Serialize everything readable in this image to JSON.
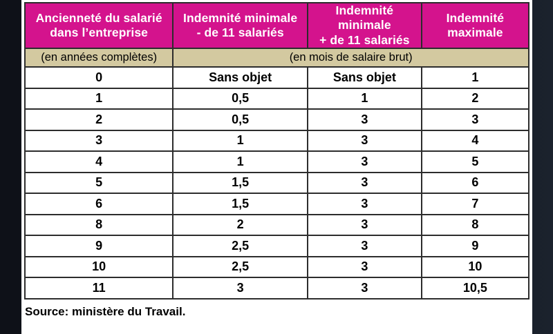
{
  "colors": {
    "header_bg": "#d4138d",
    "units_bg": "#d3c9a0",
    "border": "#2c2c2c",
    "page_bg": "#12151e",
    "panel_bg": "#ffffff"
  },
  "chart_data": {
    "type": "table",
    "header": [
      {
        "line1": "Ancienneté du salarié",
        "line2": "dans l’entreprise"
      },
      {
        "line1": "Indemnité minimale",
        "line2": "- de 11 salariés"
      },
      {
        "line1": "Indemnité minimale",
        "line2": "+ de 11 salariés"
      },
      {
        "line1": "Indemnité",
        "line2": "maximale"
      }
    ],
    "units": {
      "years": "(en années complètes)",
      "months": "(en mois de salaire brut)"
    },
    "rows": [
      [
        "0",
        "Sans objet",
        "Sans objet",
        "1"
      ],
      [
        "1",
        "0,5",
        "1",
        "2"
      ],
      [
        "2",
        "0,5",
        "3",
        "3"
      ],
      [
        "3",
        "1",
        "3",
        "4"
      ],
      [
        "4",
        "1",
        "3",
        "5"
      ],
      [
        "5",
        "1,5",
        "3",
        "6"
      ],
      [
        "6",
        "1,5",
        "3",
        "7"
      ],
      [
        "8",
        "2",
        "3",
        "8"
      ],
      [
        "9",
        "2,5",
        "3",
        "9"
      ],
      [
        "10",
        "2,5",
        "3",
        "10"
      ],
      [
        "11",
        "3",
        "3",
        "10,5"
      ]
    ],
    "source": "Source: ministère du Travail."
  }
}
